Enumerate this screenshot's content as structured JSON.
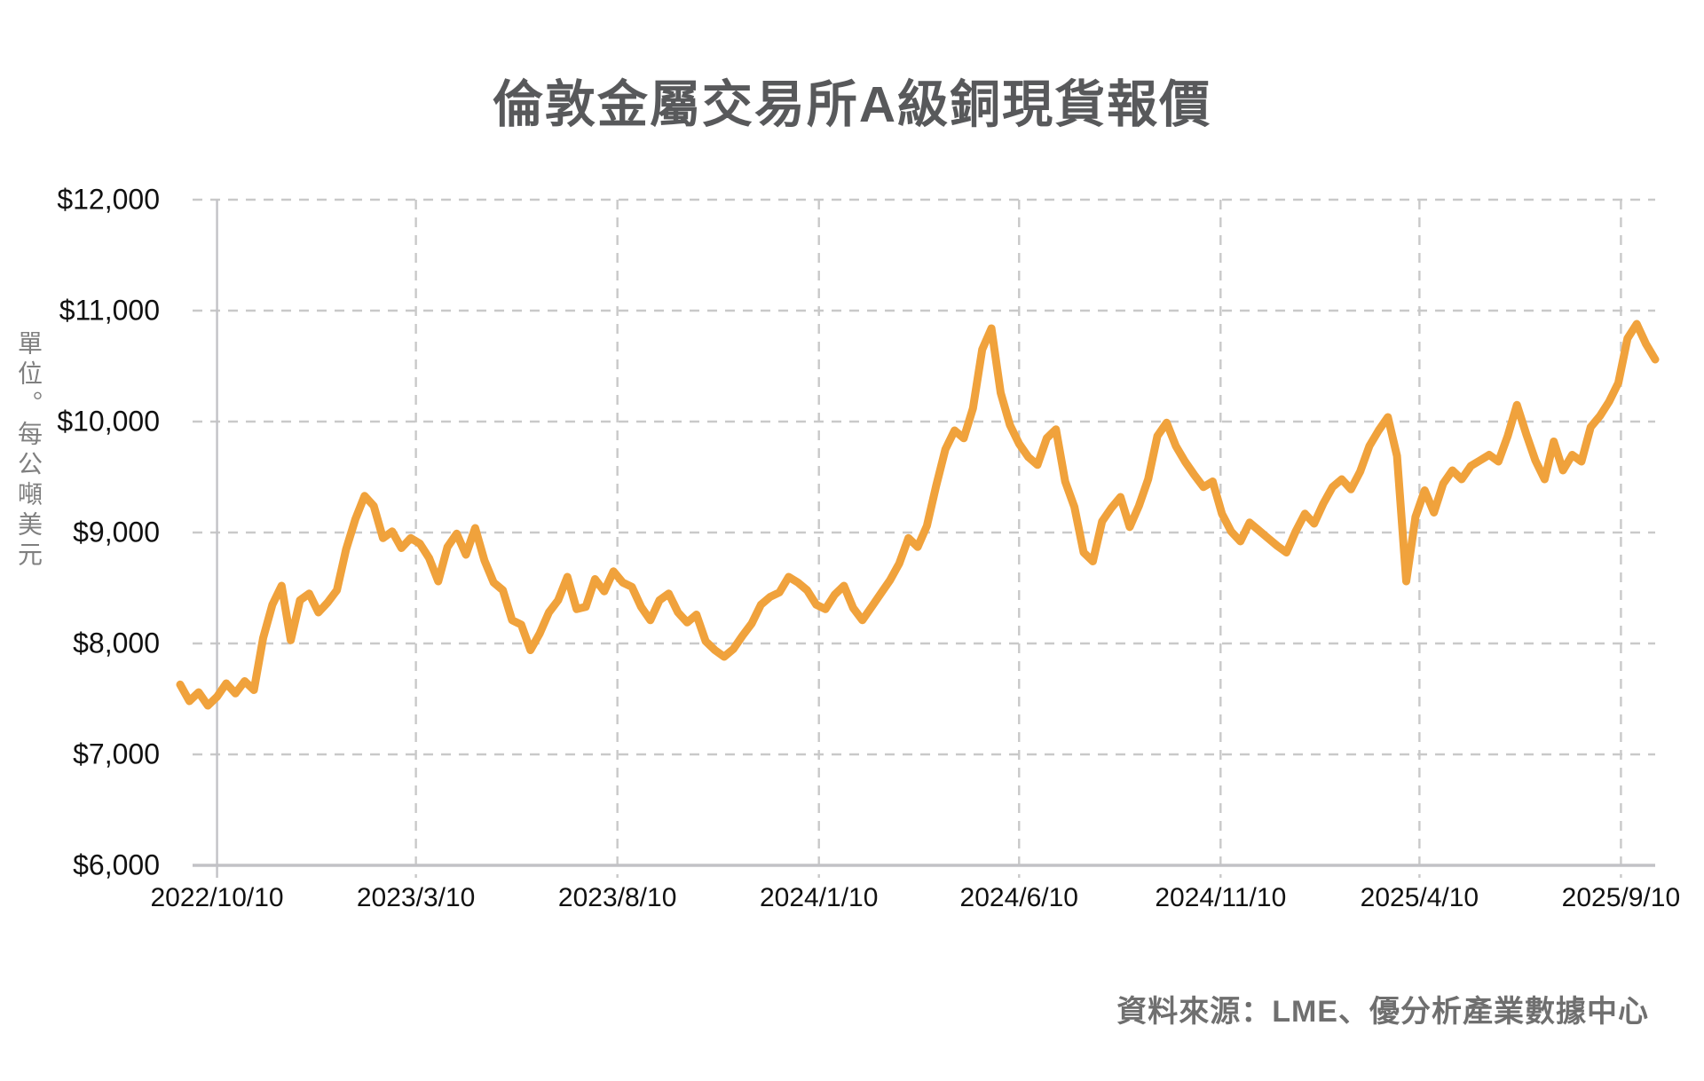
{
  "chart_data": {
    "type": "line",
    "title": "倫敦金屬交易所A級銅現貨報價",
    "unit_label": "單位。每公噸美元",
    "source": "資料來源：LME、優分析產業數據中心",
    "line_color": "#f0a23c",
    "grid_color": "#c9c9c9",
    "axis_color": "#c2c2c6",
    "legend": "none",
    "grid": "both-dashed",
    "y_axis": {
      "min": 6000,
      "max": 12000,
      "step": 1000,
      "tick_labels": [
        "$12,000",
        "$11,000",
        "$10,000",
        "$9,000",
        "$8,000",
        "$7,000",
        "$6,000"
      ],
      "tick_values": [
        12000,
        11000,
        10000,
        9000,
        8000,
        7000,
        6000
      ]
    },
    "x_axis": {
      "ticks": [
        {
          "date": "2022-10-10",
          "label": "2022/10/10"
        },
        {
          "date": "2023-03-10",
          "label": "2023/3/10"
        },
        {
          "date": "2023-08-10",
          "label": "2023/8/10"
        },
        {
          "date": "2024-01-10",
          "label": "2024/1/10"
        },
        {
          "date": "2024-06-10",
          "label": "2024/6/10"
        },
        {
          "date": "2024-11-10",
          "label": "2024/11/10"
        },
        {
          "date": "2025-04-10",
          "label": "2025/4/10"
        },
        {
          "date": "2025-09-10",
          "label": "2025/9/10"
        }
      ]
    },
    "series": [
      {
        "start_date": "2022-09-12",
        "interval_days": 7,
        "values": [
          7630,
          7480,
          7560,
          7440,
          7520,
          7640,
          7550,
          7660,
          7580,
          8050,
          8350,
          8520,
          8030,
          8390,
          8450,
          8280,
          8370,
          8480,
          8850,
          9120,
          9330,
          9240,
          8950,
          9010,
          8860,
          8950,
          8900,
          8770,
          8560,
          8870,
          8990,
          8800,
          9040,
          8750,
          8550,
          8480,
          8210,
          8170,
          7940,
          8090,
          8280,
          8390,
          8600,
          8310,
          8330,
          8580,
          8470,
          8650,
          8550,
          8510,
          8330,
          8210,
          8390,
          8450,
          8280,
          8190,
          8260,
          8020,
          7940,
          7880,
          7950,
          8070,
          8180,
          8350,
          8420,
          8460,
          8600,
          8550,
          8480,
          8350,
          8310,
          8440,
          8520,
          8320,
          8210,
          8330,
          8450,
          8570,
          8720,
          8950,
          8870,
          9060,
          9420,
          9750,
          9920,
          9850,
          10120,
          10650,
          10840,
          10260,
          9970,
          9800,
          9680,
          9610,
          9850,
          9930,
          9460,
          9230,
          8820,
          8740,
          9100,
          9220,
          9320,
          9050,
          9240,
          9480,
          9870,
          9990,
          9780,
          9640,
          9520,
          9410,
          9460,
          9170,
          9010,
          8920,
          9090,
          9020,
          8950,
          8880,
          8820,
          9010,
          9170,
          9080,
          9260,
          9410,
          9480,
          9390,
          9550,
          9780,
          9920,
          10040,
          9690,
          8560,
          9140,
          9380,
          9180,
          9440,
          9560,
          9480,
          9600,
          9650,
          9700,
          9640,
          9870,
          10150,
          9890,
          9650,
          9480,
          9820,
          9560,
          9700,
          9640,
          9950,
          10050,
          10180,
          10350,
          10750,
          10880,
          10700,
          10560
        ]
      }
    ]
  }
}
